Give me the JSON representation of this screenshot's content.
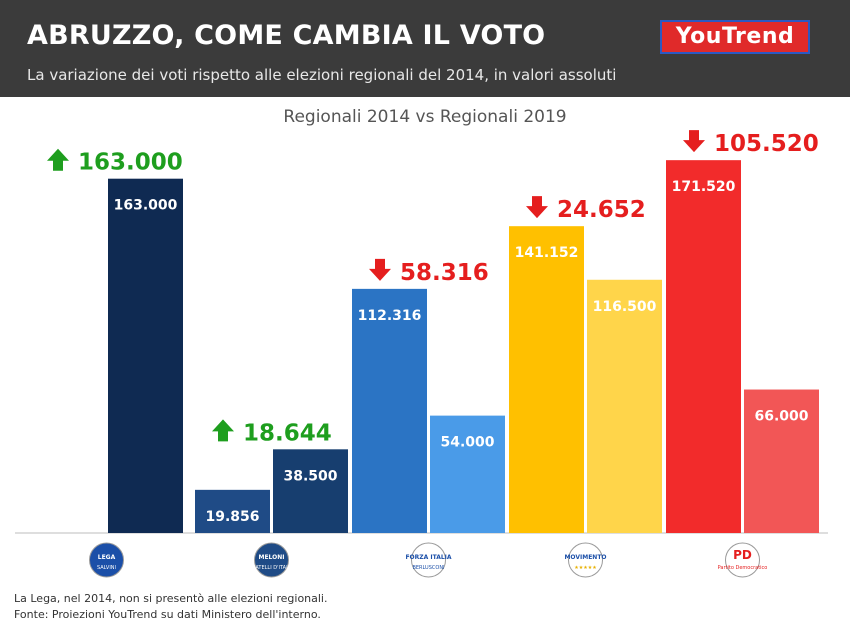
{
  "header": {
    "title": "ABRUZZO, COME CAMBIA IL VOTO",
    "subtitle": "La variazione dei voti rispetto alle elezioni regionali del 2014, in valori assoluti",
    "logo": "YouTrend"
  },
  "chart_data": {
    "type": "bar",
    "title": "Regionali 2014 vs Regionali 2019",
    "categories": [
      "Lega",
      "Fratelli d'Italia",
      "Forza Italia",
      "Movimento 5 Stelle",
      "Partito Democratico"
    ],
    "series": [
      {
        "name": "Regionali 2014",
        "values": [
          null,
          19856,
          112316,
          141152,
          171520
        ],
        "labels": [
          "",
          "19.856",
          "112.316",
          "141.152",
          "171.520"
        ]
      },
      {
        "name": "Regionali 2019",
        "values": [
          163000,
          38500,
          54000,
          116500,
          66000
        ],
        "labels": [
          "163.000",
          "38.500",
          "54.000",
          "116.500",
          "66.000"
        ]
      }
    ],
    "changes": [
      {
        "value": "163.000",
        "direction": "up"
      },
      {
        "value": "18.644",
        "direction": "up"
      },
      {
        "value": "58.316",
        "direction": "down"
      },
      {
        "value": "24.652",
        "direction": "down"
      },
      {
        "value": "105.520",
        "direction": "down"
      }
    ],
    "ylim": [
      0,
      190000
    ],
    "grid": false,
    "colors": {
      "2014": [
        "#0f2a52",
        "#1f4b86",
        "#2b74c4",
        "#ffc000",
        "#f22b2b"
      ],
      "2019": [
        "#0f2a52",
        "#173e6f",
        "#4a9be8",
        "#ffd54a",
        "#f25656"
      ],
      "up": "#1e9e1e",
      "down": "#e51e1e"
    },
    "logo_labels": [
      [
        "LEGA",
        "SALVINI"
      ],
      [
        "MELONI",
        "FRATELLI D'ITALIA"
      ],
      [
        "FORZA ITALIA",
        "BERLUSCONI"
      ],
      [
        "MOVIMENTO",
        "★★★★★"
      ],
      [
        "PD",
        "Partito Democratico"
      ]
    ]
  },
  "footer": {
    "note": "La Lega, nel 2014, non si presentò alle elezioni regionali.",
    "source": "Fonte: Proiezioni YouTrend su dati Ministero dell'interno."
  }
}
